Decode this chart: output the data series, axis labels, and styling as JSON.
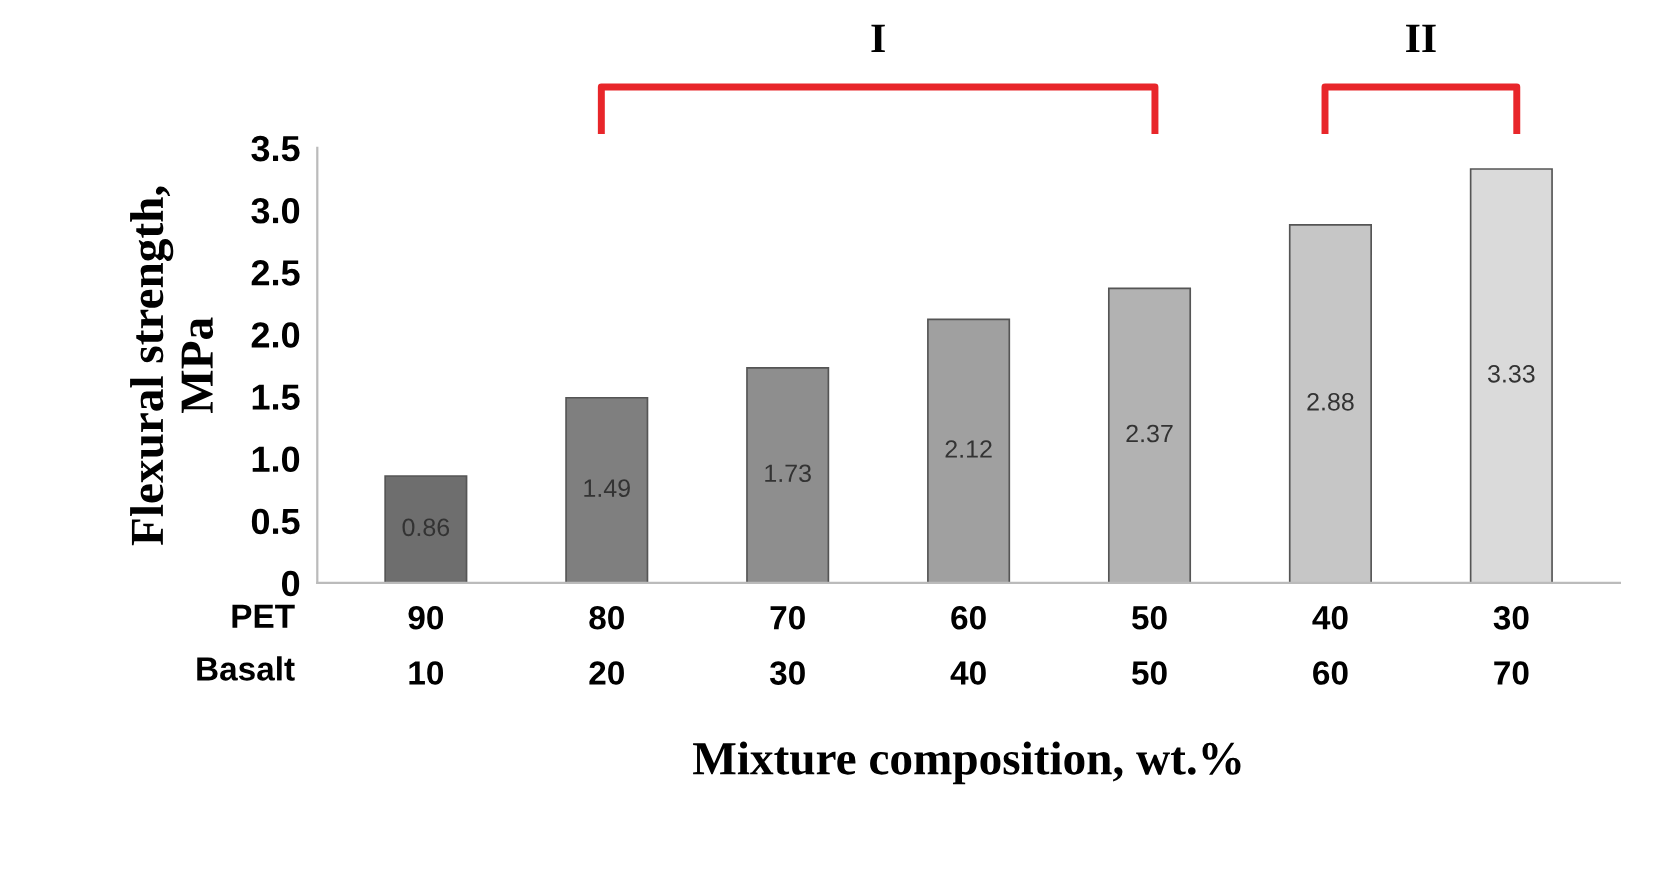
{
  "chart_data": {
    "type": "bar",
    "categories": [
      "90\n10",
      "80\n20",
      "70\n30",
      "60\n40",
      "50\n50",
      "40\n60",
      "30\n70"
    ],
    "values": [
      0.86,
      1.49,
      1.73,
      2.12,
      2.37,
      2.88,
      3.33
    ],
    "colors": [
      "#6e6e6e",
      "#7f7f7f",
      "#8e8e8e",
      "#a0a0a0",
      "#b2b2b2",
      "#c6c6c6",
      "#dadada"
    ],
    "data_labels": true,
    "ylim": [
      0,
      3.5
    ],
    "yticks": [
      0,
      0.5,
      {
        "value": 1,
        "label": "1.0"
      },
      1.5,
      {
        "value": 2,
        "label": "2.0"
      },
      2.5,
      {
        "value": 3,
        "label": "3.0"
      },
      3.5
    ],
    "ylabel": "Flexural strength,\nMPa",
    "xlabel": "Mixture composition, wt.%",
    "annotations": [
      "PET",
      "Basalt",
      "I",
      "II"
    ]
  }
}
